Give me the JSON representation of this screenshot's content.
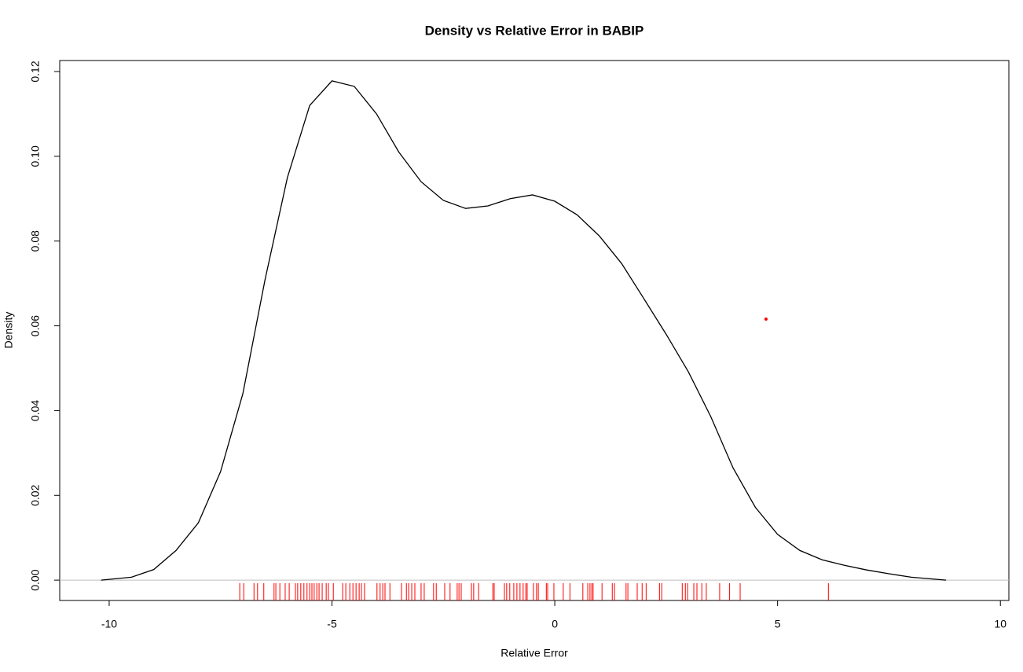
{
  "chart_data": {
    "type": "line",
    "title": "Density vs Relative Error in BABIP",
    "x_label": "Relative Error",
    "y_label": "Density",
    "x": [
      -10.18,
      -9.5,
      -9,
      -8.5,
      -8,
      -7.5,
      -7,
      -6.5,
      -6,
      -5.5,
      -5,
      -4.5,
      -4,
      -3.5,
      -3,
      -2.5,
      -2,
      -1.5,
      -1,
      -0.5,
      0,
      0.5,
      1,
      1.5,
      2,
      2.5,
      3,
      3.5,
      4,
      4.5,
      5,
      5.5,
      6,
      6.5,
      7,
      7.5,
      8,
      8.78
    ],
    "values": [
      0,
      0.0007,
      0.0025,
      0.007,
      0.0135,
      0.0256,
      0.044,
      0.071,
      0.095,
      0.112,
      0.1178,
      0.1165,
      0.11,
      0.101,
      0.094,
      0.0896,
      0.0877,
      0.0883,
      0.09,
      0.0909,
      0.0894,
      0.0862,
      0.0812,
      0.0747,
      0.0664,
      0.058,
      0.0491,
      0.0386,
      0.0265,
      0.0172,
      0.0108,
      0.007,
      0.0048,
      0.0035,
      0.0024,
      0.0015,
      0.0007,
      0
    ],
    "color": "#000000",
    "rug": {
      "color": "#ff0000",
      "values": [
        -7.07,
        -6.98,
        -6.75,
        -6.67,
        -6.53,
        -6.3,
        -6.26,
        -6.17,
        -6.05,
        -5.96,
        -5.82,
        -5.77,
        -5.7,
        -5.63,
        -5.56,
        -5.5,
        -5.45,
        -5.4,
        -5.34,
        -5.29,
        -5.22,
        -5.13,
        -5.08,
        -4.97,
        -4.76,
        -4.69,
        -4.6,
        -4.53,
        -4.46,
        -4.39,
        -4.34,
        -4.27,
        -3.99,
        -3.92,
        -3.86,
        -3.81,
        -3.7,
        -3.44,
        -3.33,
        -3.28,
        -3.21,
        -3.14,
        -3.0,
        -2.93,
        -2.72,
        -2.66,
        -2.47,
        -2.35,
        -2.19,
        -2.15,
        -2.1,
        -1.87,
        -1.82,
        -1.71,
        -1.39,
        -1.36,
        -1.13,
        -1.08,
        -1.01,
        -0.92,
        -0.85,
        -0.78,
        -0.71,
        -0.65,
        -0.62,
        -0.48,
        -0.41,
        -0.37,
        -0.19,
        -0.16,
        -0.02,
        0.19,
        0.34,
        0.63,
        0.74,
        0.79,
        0.83,
        0.86,
        1.06,
        1.29,
        1.34,
        1.6,
        1.64,
        1.85,
        1.96,
        2.05,
        2.35,
        2.4,
        2.86,
        2.93,
        2.98,
        3.12,
        3.19,
        3.3,
        3.4,
        3.7,
        3.92,
        4.16,
        6.14
      ]
    },
    "points": {
      "color": "#ff0000",
      "x": [
        4.74
      ],
      "values": [
        0.0616
      ]
    },
    "hline": {
      "value": 0,
      "color": "#bebebe"
    },
    "xlim": [
      -11.11,
      10.19
    ],
    "ylim": [
      -0.0048,
      0.1226
    ],
    "xticks": [
      -10,
      -5,
      0,
      5,
      10
    ],
    "yticks": [
      {
        "value": 0,
        "label": "0.00"
      },
      {
        "value": 0.02,
        "label": "0.02"
      },
      {
        "value": 0.04,
        "label": "0.04"
      },
      {
        "value": 0.06,
        "label": "0.06"
      },
      {
        "value": 0.08,
        "label": "0.08"
      },
      {
        "value": 0.1,
        "label": "0.10"
      },
      {
        "value": 0.12,
        "label": "0.12"
      }
    ]
  }
}
